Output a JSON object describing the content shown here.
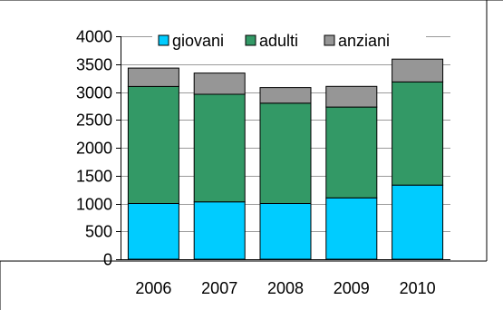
{
  "chart_data": {
    "type": "bar",
    "stacked": true,
    "categories": [
      "2006",
      "2007",
      "2008",
      "2009",
      "2010"
    ],
    "series": [
      {
        "name": "giovani",
        "color": "#00ccff",
        "values": [
          1000,
          1030,
          1000,
          1100,
          1330
        ]
      },
      {
        "name": "adulti",
        "color": "#339966",
        "values": [
          2100,
          1930,
          1800,
          1630,
          1850
        ]
      },
      {
        "name": "anziani",
        "color": "#969696",
        "values": [
          330,
          380,
          280,
          370,
          410
        ]
      }
    ],
    "yticks": [
      "0",
      "500",
      "1000",
      "1500",
      "2000",
      "2500",
      "3000",
      "3500",
      "4000"
    ],
    "ylim": [
      0,
      4000
    ],
    "grid": true,
    "legend_position": "top"
  }
}
